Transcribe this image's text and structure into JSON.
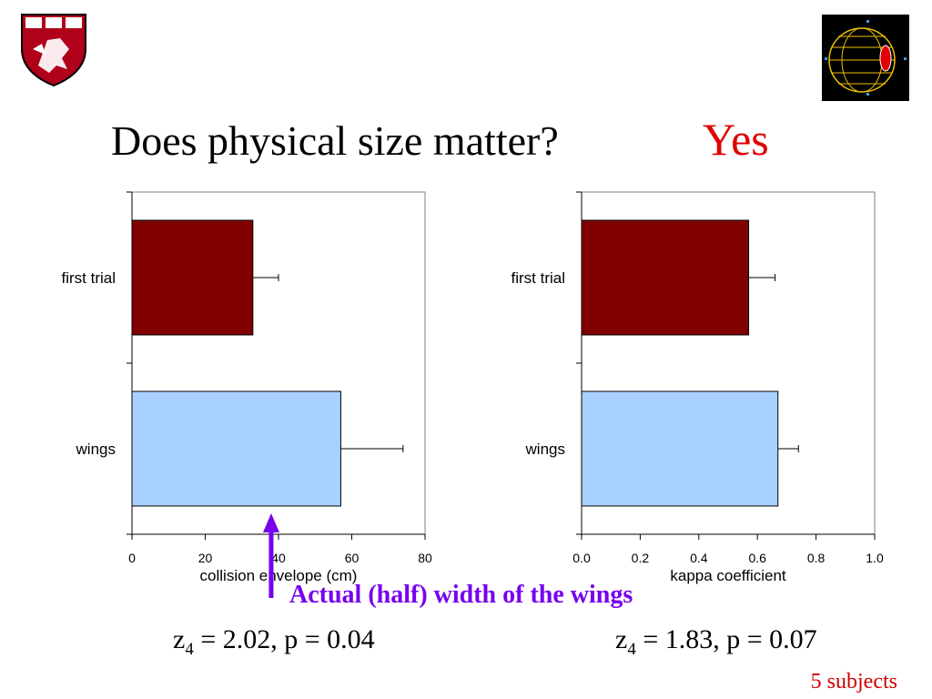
{
  "slide": {
    "title": "Does physical size matter?",
    "answer": "Yes",
    "answer_color": "#e00000",
    "annotation": "Actual (half) width of the wings",
    "annotation_value": 38,
    "annotation_color": "#7700ee",
    "stat_left": {
      "z": "z",
      "sub": "4",
      "rest": " = 2.02, p = 0.04"
    },
    "stat_right": {
      "z": "z",
      "sub": "4",
      "rest": " = 1.83, p = 0.07"
    },
    "footnote": "5 subjects",
    "logo_left_icon": "harvard-shield-icon",
    "logo_right_icon": "wireframe-globe-icon"
  },
  "chart_data": [
    {
      "type": "bar",
      "orientation": "horizontal",
      "categories": [
        "first trial",
        "wings"
      ],
      "values": [
        33,
        57
      ],
      "errors": [
        7,
        17
      ],
      "colors": [
        "#800000",
        "#a8d0ff"
      ],
      "xlabel": "collision envelope (cm)",
      "xlim": [
        0,
        80
      ],
      "xticks": [
        "0",
        "20",
        "40",
        "60",
        "80"
      ],
      "grid": false
    },
    {
      "type": "bar",
      "orientation": "horizontal",
      "categories": [
        "first trial",
        "wings"
      ],
      "values": [
        0.57,
        0.67
      ],
      "errors": [
        0.09,
        0.07
      ],
      "colors": [
        "#800000",
        "#a8d0ff"
      ],
      "xlabel": "kappa coefficient",
      "xlim": [
        0,
        1
      ],
      "xticks": [
        "0.0",
        "0.2",
        "0.4",
        "0.6",
        "0.8",
        "1.0"
      ],
      "grid": false
    }
  ]
}
